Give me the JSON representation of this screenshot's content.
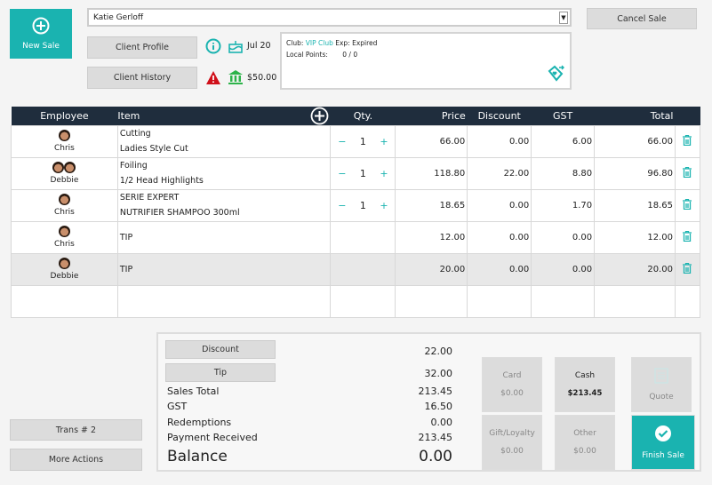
{
  "new_sale": "New Sale",
  "client_name": "Katie Gerloff",
  "cancel_sale": "Cancel Sale",
  "client_profile": "Client Profile",
  "client_history": "Client History",
  "birthday": "Jul 20",
  "account_balance": "$50.00",
  "club": {
    "label": "Club:",
    "name": "VIP Club",
    "exp": "Exp: Expired",
    "points_label": "Local Points:",
    "points": "0 / 0"
  },
  "table": {
    "headers": [
      "Employee",
      "Item",
      "Qty.",
      "Price",
      "Discount",
      "GST",
      "Total"
    ],
    "rows": [
      {
        "employee": "Chris",
        "item1": "Cutting",
        "item2": "Ladies Style Cut",
        "qty": "1",
        "price": "66.00",
        "discount": "0.00",
        "gst": "6.00",
        "total": "66.00"
      },
      {
        "employee": "Debbie",
        "item1": "Foiling",
        "item2": "1/2 Head Highlights",
        "qty": "1",
        "price": "118.80",
        "discount": "22.00",
        "gst": "8.80",
        "total": "96.80"
      },
      {
        "employee": "Chris",
        "item1": "SERIE EXPERT",
        "item2": "NUTRIFIER SHAMPOO 300ml",
        "qty": "1",
        "price": "18.65",
        "discount": "0.00",
        "gst": "1.70",
        "total": "18.65"
      },
      {
        "employee": "Chris",
        "item1": "",
        "item2": "TIP",
        "qty": "",
        "price": "12.00",
        "discount": "0.00",
        "gst": "0.00",
        "total": "12.00"
      },
      {
        "employee": "Debbie",
        "item1": "",
        "item2": "TIP",
        "qty": "",
        "price": "20.00",
        "discount": "0.00",
        "gst": "0.00",
        "total": "20.00"
      }
    ]
  },
  "summary": {
    "discount_btn": "Discount",
    "discount": "22.00",
    "tip_btn": "Tip",
    "tip": "32.00",
    "sales_total_label": "Sales Total",
    "sales_total": "213.45",
    "gst_label": "GST",
    "gst": "16.50",
    "redemptions_label": "Redemptions",
    "redemptions": "0.00",
    "payment_label": "Payment Received",
    "payment": "213.45",
    "balance_label": "Balance",
    "balance": "0.00"
  },
  "payments": {
    "card": "Card",
    "card_amt": "$0.00",
    "cash": "Cash",
    "cash_amt": "$213.45",
    "quote": "Quote",
    "gift": "Gift/Loyalty",
    "gift_amt": "$0.00",
    "other": "Other",
    "other_amt": "$0.00",
    "finish": "Finish Sale"
  },
  "trans": "Trans # 2",
  "more_actions": "More Actions",
  "colors": {
    "accent": "#1ab3b0",
    "header": "#1f2d3d",
    "warning": "#d0101a",
    "bank": "#2db34a"
  }
}
